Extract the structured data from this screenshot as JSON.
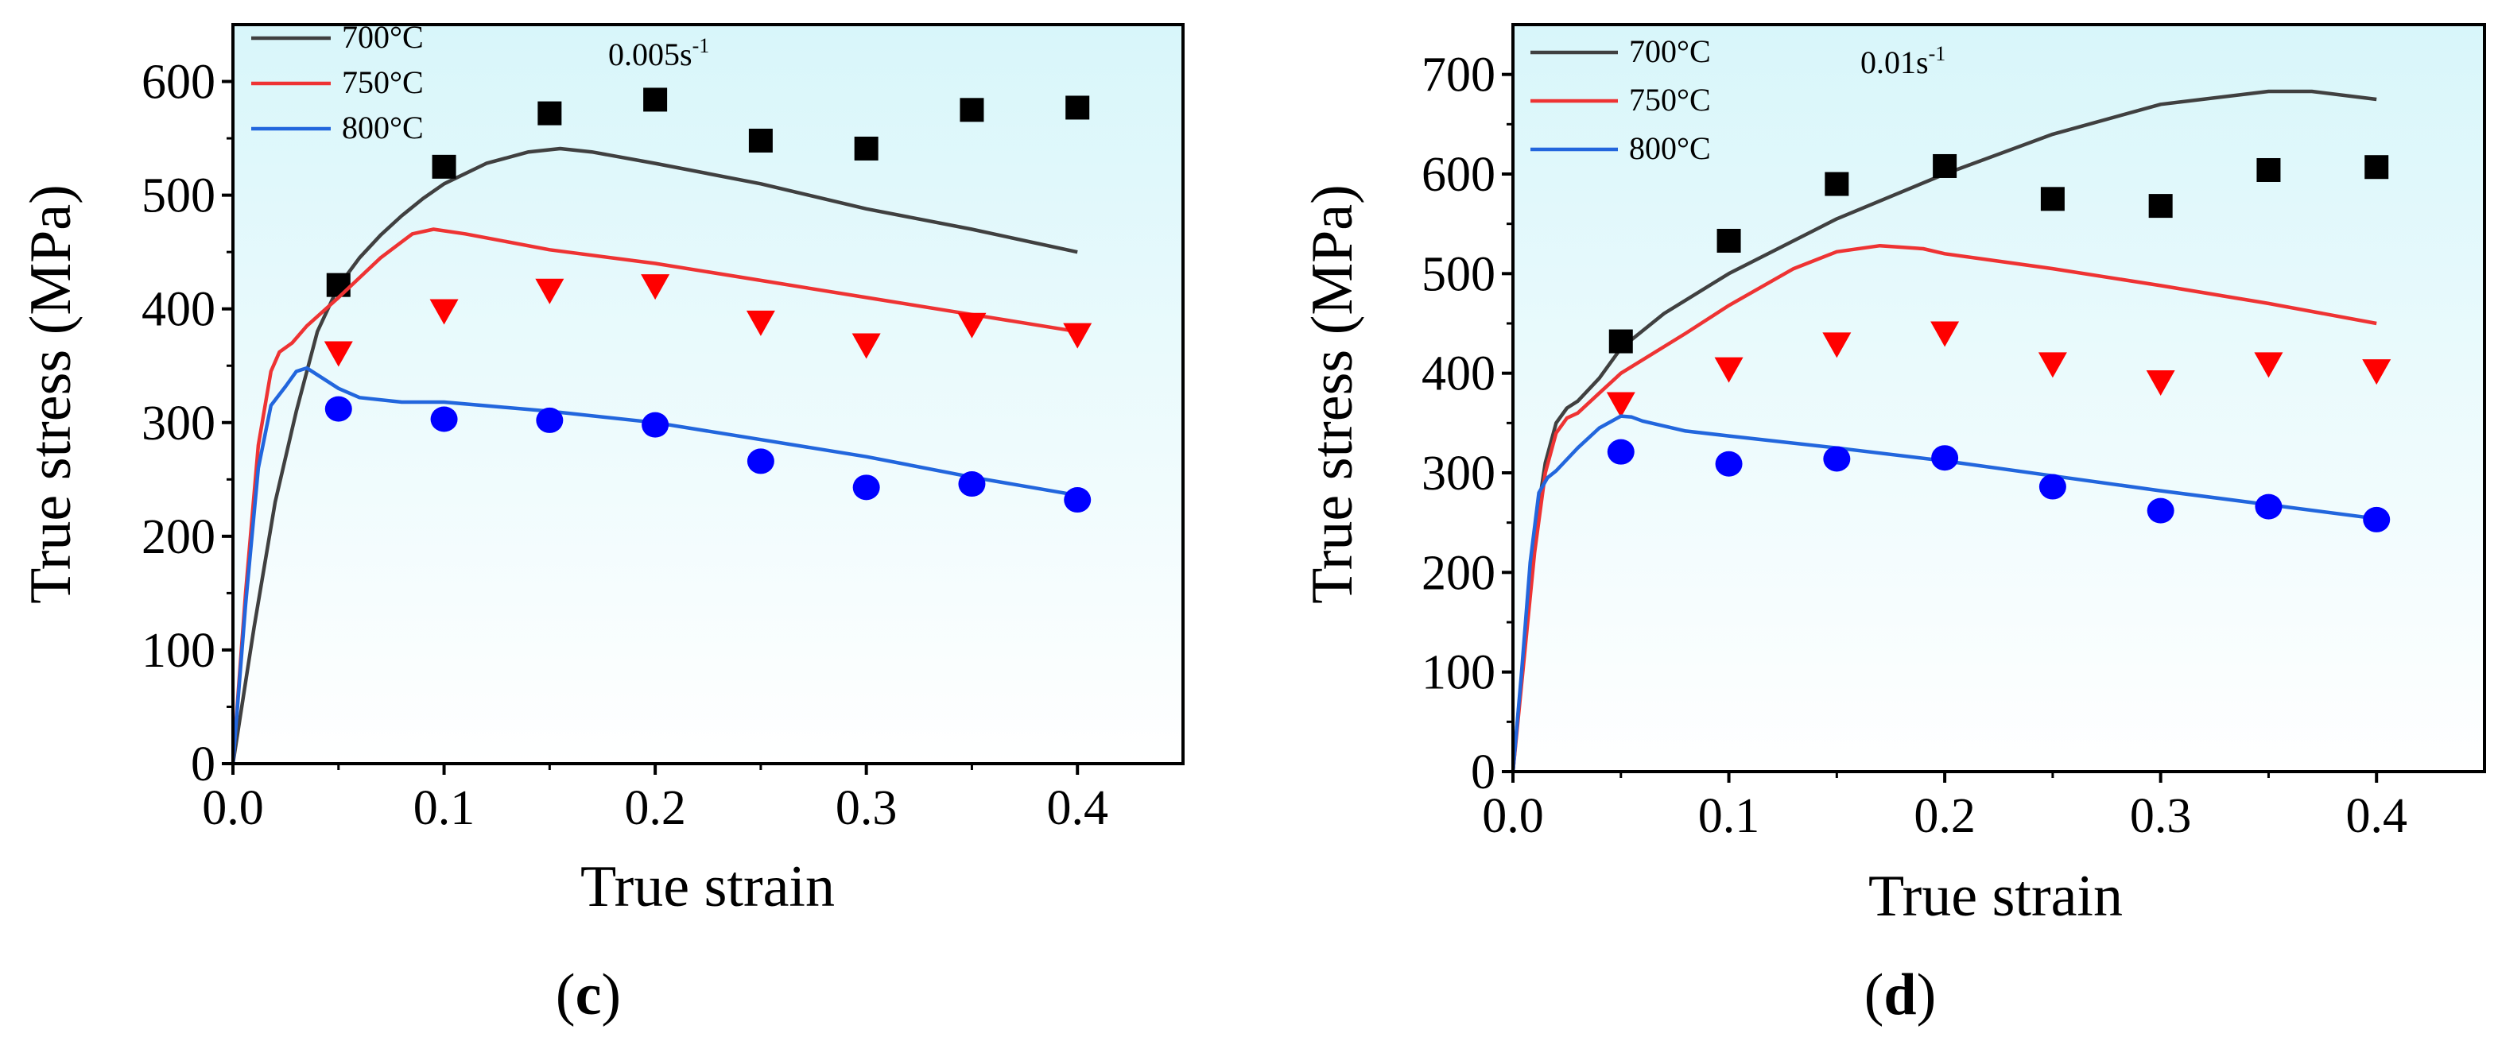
{
  "chart_data": [
    {
      "type": "line",
      "panel_label": "c",
      "strain_rate_label": "0.005s",
      "strain_rate_exp": "-1",
      "xlabel": "True strain",
      "ylabel": "True stress (MPa)",
      "xlim": [
        0,
        0.45
      ],
      "ylim": [
        0,
        650
      ],
      "xticks": [
        0.0,
        0.1,
        0.2,
        0.3,
        0.4
      ],
      "xtick_labels": [
        "0.0",
        "0.1",
        "0.2",
        "0.3",
        "0.4"
      ],
      "yticks": [
        0,
        100,
        200,
        300,
        400,
        500,
        600
      ],
      "ytick_labels": [
        "0",
        "100",
        "200",
        "300",
        "400",
        "500",
        "600"
      ],
      "legend_location": "top-left",
      "series": [
        {
          "name": "700°C",
          "color": "#404040",
          "marker": "square",
          "marker_color": "#000000",
          "curve": [
            [
              0,
              0
            ],
            [
              0.01,
              120
            ],
            [
              0.02,
              230
            ],
            [
              0.03,
              310
            ],
            [
              0.04,
              380
            ],
            [
              0.05,
              420
            ],
            [
              0.06,
              445
            ],
            [
              0.07,
              465
            ],
            [
              0.08,
              482
            ],
            [
              0.09,
              497
            ],
            [
              0.1,
              510
            ],
            [
              0.12,
              528
            ],
            [
              0.14,
              538
            ],
            [
              0.155,
              541
            ],
            [
              0.17,
              538
            ],
            [
              0.2,
              528
            ],
            [
              0.25,
              510
            ],
            [
              0.3,
              488
            ],
            [
              0.35,
              470
            ],
            [
              0.4,
              450
            ]
          ],
          "points": [
            [
              0.05,
              421
            ],
            [
              0.1,
              525
            ],
            [
              0.15,
              572
            ],
            [
              0.2,
              584
            ],
            [
              0.25,
              548
            ],
            [
              0.3,
              541
            ],
            [
              0.35,
              575
            ],
            [
              0.4,
              577
            ]
          ]
        },
        {
          "name": "750°C",
          "color": "#ee3333",
          "marker": "triangle-down",
          "marker_color": "#ff0000",
          "curve": [
            [
              0,
              0
            ],
            [
              0.006,
              150
            ],
            [
              0.012,
              280
            ],
            [
              0.018,
              345
            ],
            [
              0.022,
              362
            ],
            [
              0.028,
              370
            ],
            [
              0.035,
              385
            ],
            [
              0.05,
              410
            ],
            [
              0.07,
              445
            ],
            [
              0.085,
              466
            ],
            [
              0.095,
              470
            ],
            [
              0.11,
              466
            ],
            [
              0.15,
              452
            ],
            [
              0.2,
              440
            ],
            [
              0.25,
              425
            ],
            [
              0.3,
              410
            ],
            [
              0.35,
              395
            ],
            [
              0.4,
              380
            ]
          ],
          "points": [
            [
              0.05,
              361
            ],
            [
              0.1,
              398
            ],
            [
              0.15,
              416
            ],
            [
              0.2,
              420
            ],
            [
              0.25,
              388
            ],
            [
              0.3,
              368
            ],
            [
              0.35,
              386
            ],
            [
              0.4,
              377
            ]
          ]
        },
        {
          "name": "800°C",
          "color": "#2266dd",
          "marker": "circle",
          "marker_color": "#0000ff",
          "curve": [
            [
              0,
              0
            ],
            [
              0.006,
              140
            ],
            [
              0.012,
              260
            ],
            [
              0.018,
              315
            ],
            [
              0.025,
              332
            ],
            [
              0.03,
              345
            ],
            [
              0.035,
              348
            ],
            [
              0.04,
              342
            ],
            [
              0.05,
              330
            ],
            [
              0.06,
              322
            ],
            [
              0.08,
              318
            ],
            [
              0.1,
              318
            ],
            [
              0.15,
              310
            ],
            [
              0.2,
              300
            ],
            [
              0.25,
              285
            ],
            [
              0.3,
              270
            ],
            [
              0.35,
              252
            ],
            [
              0.4,
              236
            ]
          ],
          "points": [
            [
              0.05,
              312
            ],
            [
              0.1,
              303
            ],
            [
              0.15,
              302
            ],
            [
              0.2,
              298
            ],
            [
              0.25,
              266
            ],
            [
              0.3,
              243
            ],
            [
              0.35,
              246
            ],
            [
              0.4,
              232
            ]
          ]
        }
      ]
    },
    {
      "type": "line",
      "panel_label": "d",
      "strain_rate_label": "0.01s",
      "strain_rate_exp": "-1",
      "xlabel": "True strain",
      "ylabel": "True stress (MPa)",
      "xlim": [
        0,
        0.45
      ],
      "ylim": [
        0,
        750
      ],
      "xticks": [
        0.0,
        0.1,
        0.2,
        0.3,
        0.4
      ],
      "xtick_labels": [
        "0.0",
        "0.1",
        "0.2",
        "0.3",
        "0.4"
      ],
      "yticks": [
        0,
        100,
        200,
        300,
        400,
        500,
        600,
        700
      ],
      "ytick_labels": [
        "0",
        "100",
        "200",
        "300",
        "400",
        "500",
        "600",
        "700"
      ],
      "legend_location": "top-left",
      "series": [
        {
          "name": "700°C",
          "color": "#404040",
          "marker": "square",
          "marker_color": "#000000",
          "curve": [
            [
              0,
              0
            ],
            [
              0.005,
              120
            ],
            [
              0.01,
              240
            ],
            [
              0.015,
              310
            ],
            [
              0.02,
              350
            ],
            [
              0.025,
              365
            ],
            [
              0.03,
              372
            ],
            [
              0.04,
              395
            ],
            [
              0.05,
              425
            ],
            [
              0.07,
              460
            ],
            [
              0.1,
              500
            ],
            [
              0.15,
              555
            ],
            [
              0.2,
              600
            ],
            [
              0.25,
              640
            ],
            [
              0.3,
              670
            ],
            [
              0.35,
              683
            ],
            [
              0.37,
              683
            ],
            [
              0.4,
              675
            ]
          ],
          "points": [
            [
              0.05,
              432
            ],
            [
              0.1,
              533
            ],
            [
              0.15,
              590
            ],
            [
              0.2,
              608
            ],
            [
              0.25,
              575
            ],
            [
              0.3,
              568
            ],
            [
              0.35,
              604
            ],
            [
              0.4,
              607
            ]
          ]
        },
        {
          "name": "750°C",
          "color": "#ee3333",
          "marker": "triangle-down",
          "marker_color": "#ff0000",
          "curve": [
            [
              0,
              0
            ],
            [
              0.005,
              110
            ],
            [
              0.01,
              220
            ],
            [
              0.015,
              300
            ],
            [
              0.02,
              340
            ],
            [
              0.025,
              355
            ],
            [
              0.03,
              360
            ],
            [
              0.04,
              380
            ],
            [
              0.05,
              400
            ],
            [
              0.08,
              440
            ],
            [
              0.1,
              468
            ],
            [
              0.13,
              505
            ],
            [
              0.15,
              522
            ],
            [
              0.17,
              528
            ],
            [
              0.19,
              525
            ],
            [
              0.2,
              520
            ],
            [
              0.25,
              505
            ],
            [
              0.3,
              488
            ],
            [
              0.35,
              470
            ],
            [
              0.4,
              450
            ]
          ],
          "points": [
            [
              0.05,
              369
            ],
            [
              0.1,
              404
            ],
            [
              0.15,
              429
            ],
            [
              0.2,
              440
            ],
            [
              0.25,
              409
            ],
            [
              0.3,
              391
            ],
            [
              0.35,
              409
            ],
            [
              0.4,
              402
            ]
          ]
        },
        {
          "name": "800°C",
          "color": "#2266dd",
          "marker": "circle",
          "marker_color": "#0000ff",
          "curve": [
            [
              0,
              0
            ],
            [
              0.004,
              100
            ],
            [
              0.008,
              210
            ],
            [
              0.012,
              280
            ],
            [
              0.016,
              295
            ],
            [
              0.02,
              302
            ],
            [
              0.03,
              325
            ],
            [
              0.04,
              345
            ],
            [
              0.05,
              357
            ],
            [
              0.055,
              356
            ],
            [
              0.06,
              352
            ],
            [
              0.08,
              342
            ],
            [
              0.1,
              337
            ],
            [
              0.15,
              325
            ],
            [
              0.2,
              312
            ],
            [
              0.25,
              297
            ],
            [
              0.3,
              282
            ],
            [
              0.35,
              268
            ],
            [
              0.4,
              254
            ]
          ],
          "points": [
            [
              0.05,
              321
            ],
            [
              0.1,
              309
            ],
            [
              0.15,
              314
            ],
            [
              0.2,
              315
            ],
            [
              0.25,
              286
            ],
            [
              0.3,
              262
            ],
            [
              0.35,
              266
            ],
            [
              0.4,
              253
            ]
          ]
        }
      ]
    }
  ]
}
